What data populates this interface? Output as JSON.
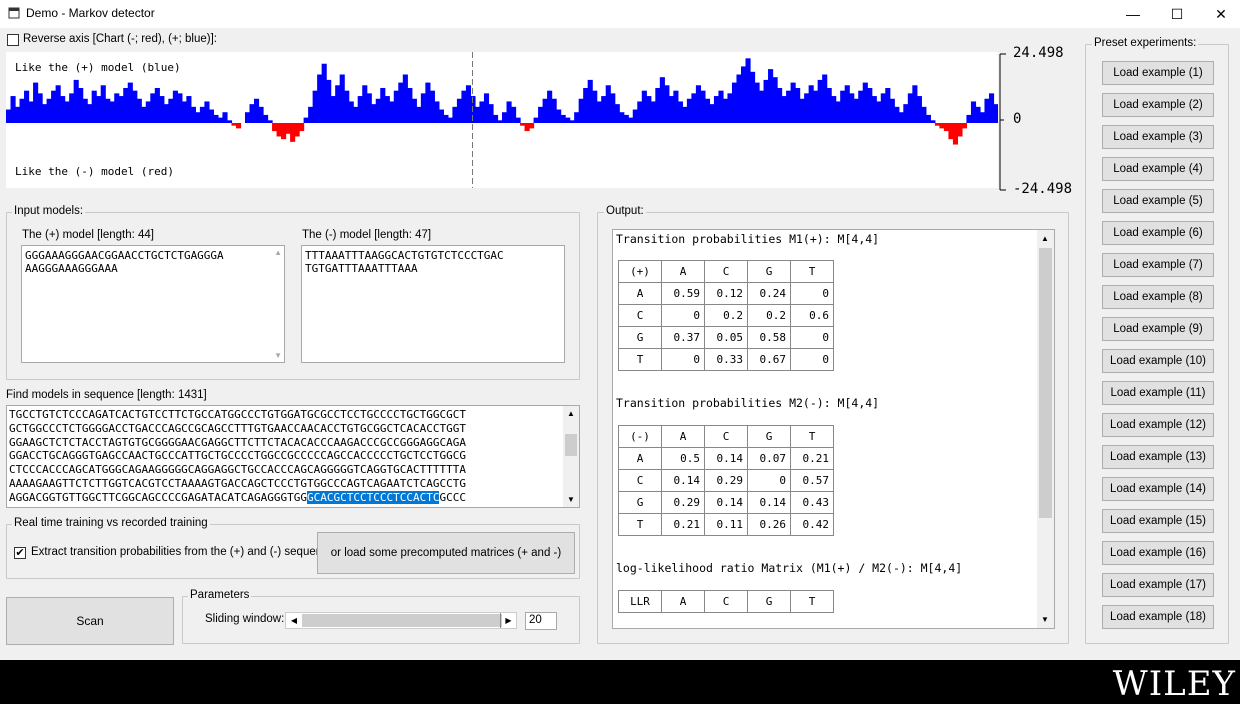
{
  "window": {
    "title": "Demo - Markov detector",
    "minimize": "—",
    "maximize": "☐",
    "close": "✕"
  },
  "chart_options": {
    "reverse_axis_label": "Reverse axis [Chart (-; red), (+; blue)]:",
    "reverse_axis_checked": false
  },
  "chart_data": {
    "type": "area",
    "title": "",
    "top_label": "Like the (+) model (blue)",
    "bottom_label": "Like the (-) model (red)",
    "y_max_label": "24.498",
    "y_zero_label": "0",
    "y_min_label": "-24.498",
    "ylim": [
      -24.498,
      24.498
    ],
    "positive_color": "#0000ff",
    "negative_color": "#ff0000",
    "cursor_fraction": 0.47,
    "values": [
      5,
      10,
      6,
      9,
      12,
      8,
      15,
      11,
      7,
      9,
      12,
      14,
      10,
      8,
      11,
      16,
      13,
      9,
      7,
      12,
      10,
      14,
      9,
      8,
      11,
      10,
      13,
      15,
      12,
      9,
      6,
      8,
      11,
      13,
      10,
      7,
      9,
      12,
      11,
      8,
      10,
      6,
      4,
      6,
      8,
      5,
      3,
      2,
      4,
      1,
      -1,
      -2,
      0,
      4,
      7,
      9,
      6,
      3,
      1,
      -3,
      -5,
      -6,
      -4,
      -7,
      -5,
      -3,
      2,
      6,
      12,
      18,
      22,
      16,
      10,
      14,
      18,
      12,
      8,
      6,
      10,
      14,
      11,
      7,
      9,
      13,
      10,
      8,
      12,
      15,
      18,
      13,
      9,
      6,
      11,
      15,
      12,
      8,
      5,
      3,
      2,
      6,
      9,
      12,
      14,
      10,
      6,
      8,
      11,
      7,
      3,
      1,
      4,
      8,
      6,
      2,
      -1,
      -3,
      -2,
      2,
      6,
      9,
      12,
      9,
      5,
      3,
      2,
      1,
      4,
      9,
      13,
      16,
      12,
      8,
      10,
      14,
      11,
      7,
      4,
      3,
      2,
      5,
      8,
      12,
      10,
      8,
      13,
      17,
      14,
      10,
      12,
      8,
      6,
      9,
      11,
      14,
      12,
      9,
      7,
      10,
      12,
      9,
      11,
      15,
      18,
      21,
      24,
      19,
      15,
      12,
      16,
      20,
      17,
      13,
      10,
      12,
      15,
      13,
      9,
      11,
      14,
      12,
      16,
      18,
      13,
      10,
      8,
      12,
      14,
      11,
      9,
      12,
      15,
      13,
      10,
      8,
      11,
      13,
      9,
      6,
      4,
      7,
      11,
      14,
      10,
      6,
      3,
      1,
      -1,
      -2,
      -3,
      -6,
      -8,
      -5,
      -2,
      3,
      8,
      6,
      4,
      9,
      11,
      7
    ],
    "values_note": ""
  },
  "input_models": {
    "legend": "Input models:",
    "plus_label": "The (+) model [length: 44]",
    "plus_seq": "GGGAAAGGGAACGGAACCTGCTCTGAGGGA\nAAGGGAAAGGGAAA",
    "minus_label": "The (-) model [length: 47]",
    "minus_seq": "TTTAAATTTAAGGCACTGTGTCTCCCTGAC\nTGTGATTTAAATTTAAA"
  },
  "sequence": {
    "label": "Find models in sequence [length: 1431]",
    "lines": [
      "TGCCTGTCTCCCAGATCACTGTCCTTCTGCCATGGCCCTGTGGATGCGCCTCCTGCCCCTGCTGGCGCT",
      "GCTGGCCCTCTGGGGACCTGACCCAGCCGCAGCCTTTGTGAACCAACACCTGTGCGGCTCACACCTGGT",
      "GGAAGCTCTCTACCTAGTGTGCGGGGAACGAGGCTTCTTCTACACACCCAAGACCCGCCGGGAGGCAGA",
      "GGACCTGCAGGGTGAGCCAACTGCCCATTGCTGCCCCTGGCCGCCCCCAGCCACCCCCTGCTCCTGGCG",
      "CTCCCACCCAGCATGGGCAGAAGGGGGCAGGAGGCTGCCACCCAGCAGGGGGTCAGGTGCACTTTTTTA",
      "AAAAGAAGTTCTCTTGGTCACGTCCTAAAAGTGACCAGCTCCCTGTGGCCCAGTCAGAATCTCAGCCTG"
    ],
    "last_line_before": "AGGACGGTGTTGGCTTCGGCAGCCCCGAGATACATCAGAGGGTGG",
    "last_line_highlight": "GCACGCTCCTCCCTCCACTC",
    "last_line_after": "GCCC"
  },
  "training": {
    "legend": "Real time training vs recorded training",
    "checkbox_label": "Extract transition probabilities from the (+) and (-) sequences,",
    "checked": true,
    "load_button": "or load some precomputed matrices (+ and -)"
  },
  "scan_button": "Scan",
  "parameters": {
    "legend": "Parameters",
    "sliding_label": "Sliding window:",
    "window_value": "20",
    "slider_fraction": 0.97
  },
  "output": {
    "legend": "Output:",
    "m1_title": "Transition probabilities M1(+): M[4,4]",
    "m1_header": [
      "(+)",
      "A",
      "C",
      "G",
      "T"
    ],
    "m1_rows": [
      [
        "A",
        "0.59",
        "0.12",
        "0.24",
        "0"
      ],
      [
        "C",
        "0",
        "0.2",
        "0.2",
        "0.6"
      ],
      [
        "G",
        "0.37",
        "0.05",
        "0.58",
        "0"
      ],
      [
        "T",
        "0",
        "0.33",
        "0.67",
        "0"
      ]
    ],
    "m2_title": "Transition probabilities M2(-): M[4,4]",
    "m2_header": [
      "(-)",
      "A",
      "C",
      "G",
      "T"
    ],
    "m2_rows": [
      [
        "A",
        "0.5",
        "0.14",
        "0.07",
        "0.21"
      ],
      [
        "C",
        "0.14",
        "0.29",
        "0",
        "0.57"
      ],
      [
        "G",
        "0.29",
        "0.14",
        "0.14",
        "0.43"
      ],
      [
        "T",
        "0.21",
        "0.11",
        "0.26",
        "0.42"
      ]
    ],
    "llr_title": "log-likelihood ratio Matrix (M1(+) / M2(-): M[4,4]",
    "llr_header": [
      "LLR",
      "A",
      "C",
      "G",
      "T"
    ]
  },
  "presets": {
    "legend": "Preset experiments:",
    "buttons": [
      "Load example (1)",
      "Load example (2)",
      "Load example (3)",
      "Load example (4)",
      "Load example (5)",
      "Load example (6)",
      "Load example (7)",
      "Load example (8)",
      "Load example (9)",
      "Load example (10)",
      "Load example (11)",
      "Load example (12)",
      "Load example (13)",
      "Load example (14)",
      "Load example (15)",
      "Load example (16)",
      "Load example (17)",
      "Load example (18)"
    ]
  },
  "footer": {
    "brand": "WILEY"
  }
}
